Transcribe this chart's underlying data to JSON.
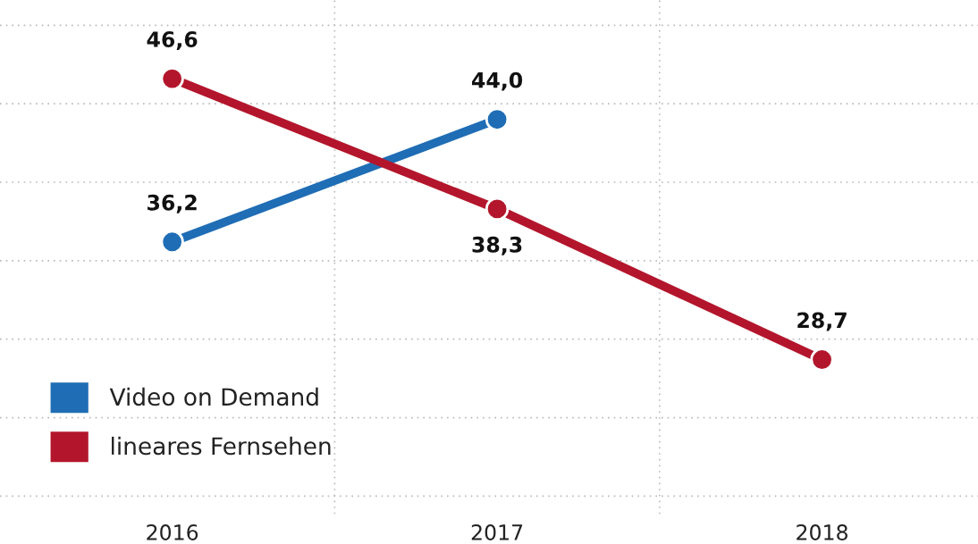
{
  "chart_data": {
    "type": "line",
    "categories": [
      "2016",
      "2017",
      "2018"
    ],
    "series": [
      {
        "name": "Video on Demand",
        "color": "#1f6db5",
        "values": [
          36.2,
          44.0,
          null
        ],
        "value_labels": [
          "36,2",
          "44,0",
          null
        ]
      },
      {
        "name": "lineares Fernsehen",
        "color": "#b3162c",
        "values": [
          46.6,
          38.3,
          28.7
        ],
        "value_labels": [
          "46,6",
          "38,3",
          "28,7"
        ]
      }
    ],
    "tick_labels": "x",
    "grid": true,
    "legend": "bottom left",
    "marker": "circle",
    "line_style": "solid"
  }
}
